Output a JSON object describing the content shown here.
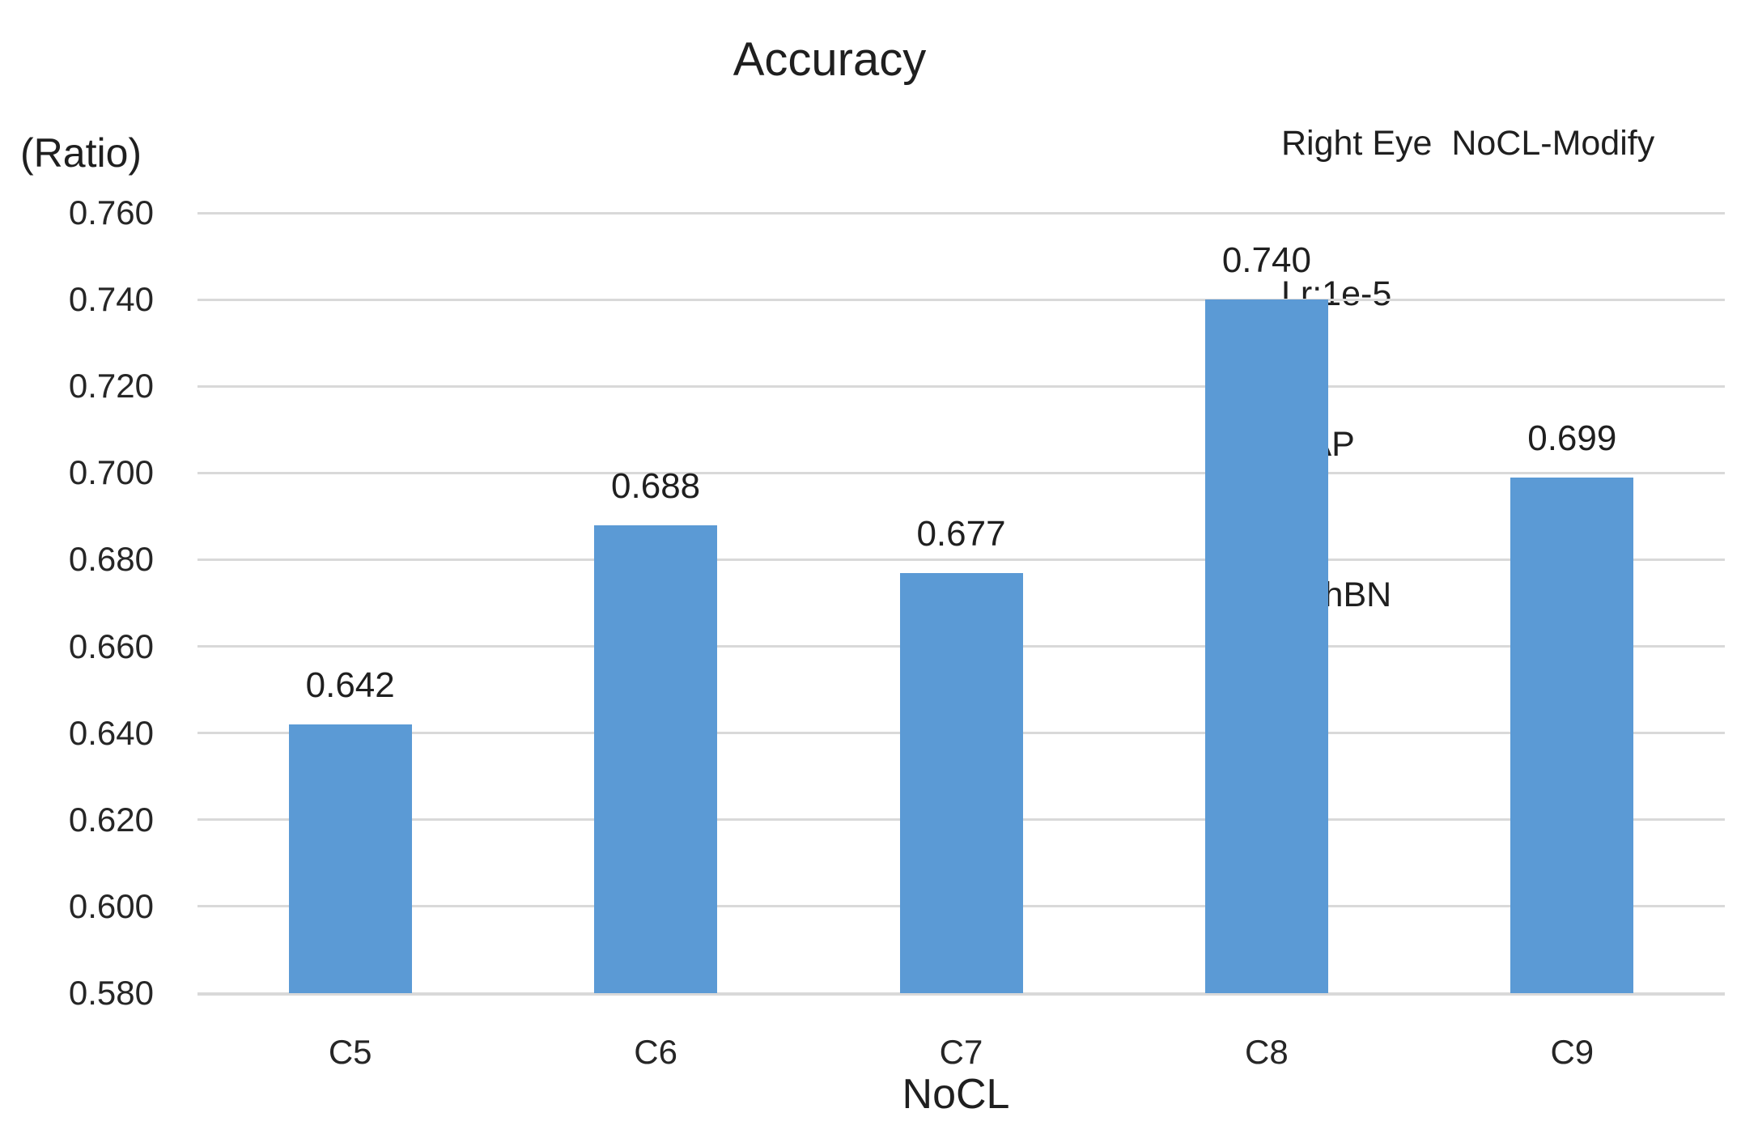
{
  "chart_data": {
    "type": "bar",
    "title": "Accuracy",
    "y_axis_unit_label": "(Ratio)",
    "xlabel": "NoCL",
    "ylabel": "",
    "categories": [
      "C5",
      "C6",
      "C7",
      "C8",
      "C9"
    ],
    "values": [
      0.642,
      0.688,
      0.677,
      0.74,
      0.699
    ],
    "data_labels": [
      "0.642",
      "0.688",
      "0.677",
      "0.740",
      "0.699"
    ],
    "ylim": [
      0.58,
      0.76
    ],
    "ytick_step": 0.02,
    "yticks": [
      "0.580",
      "0.600",
      "0.620",
      "0.640",
      "0.660",
      "0.680",
      "0.700",
      "0.720",
      "0.740",
      "0.760"
    ],
    "grid": true,
    "legend": "none",
    "bar_color": "#5B9AD5",
    "gridline_color": "#D9D9D9",
    "annotation": {
      "lines": [
        "Right Eye  NoCL-Modify",
        "Lr:1e-5",
        "GAP",
        "withBN"
      ]
    }
  }
}
